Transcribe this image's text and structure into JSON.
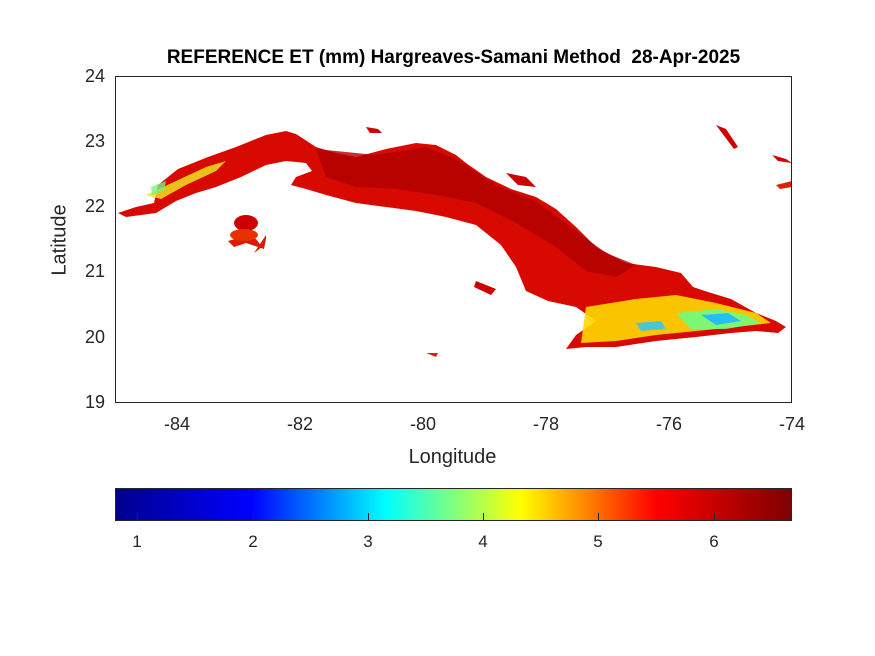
{
  "map": {
    "title": "REFERENCE ET (mm) Hargreaves-Samani Method  28-Apr-2025",
    "xlabel": "Longitude",
    "ylabel": "Latitude",
    "xlim": [
      -85,
      -74
    ],
    "ylim": [
      19,
      24
    ],
    "x_ticks": [
      "-84",
      "-82",
      "-80",
      "-78",
      "-76",
      "-74"
    ],
    "y_ticks": [
      "24",
      "23",
      "22",
      "21",
      "20",
      "19"
    ],
    "region": "Cuba",
    "colormap": "jet",
    "colorbar": {
      "range": [
        0.8,
        6.7
      ],
      "ticks": [
        "1",
        "2",
        "3",
        "4",
        "5",
        "6"
      ],
      "colors": [
        "#00008f",
        "#0000ff",
        "#00ffff",
        "#ffff00",
        "#ff0000",
        "#800000"
      ]
    }
  }
}
